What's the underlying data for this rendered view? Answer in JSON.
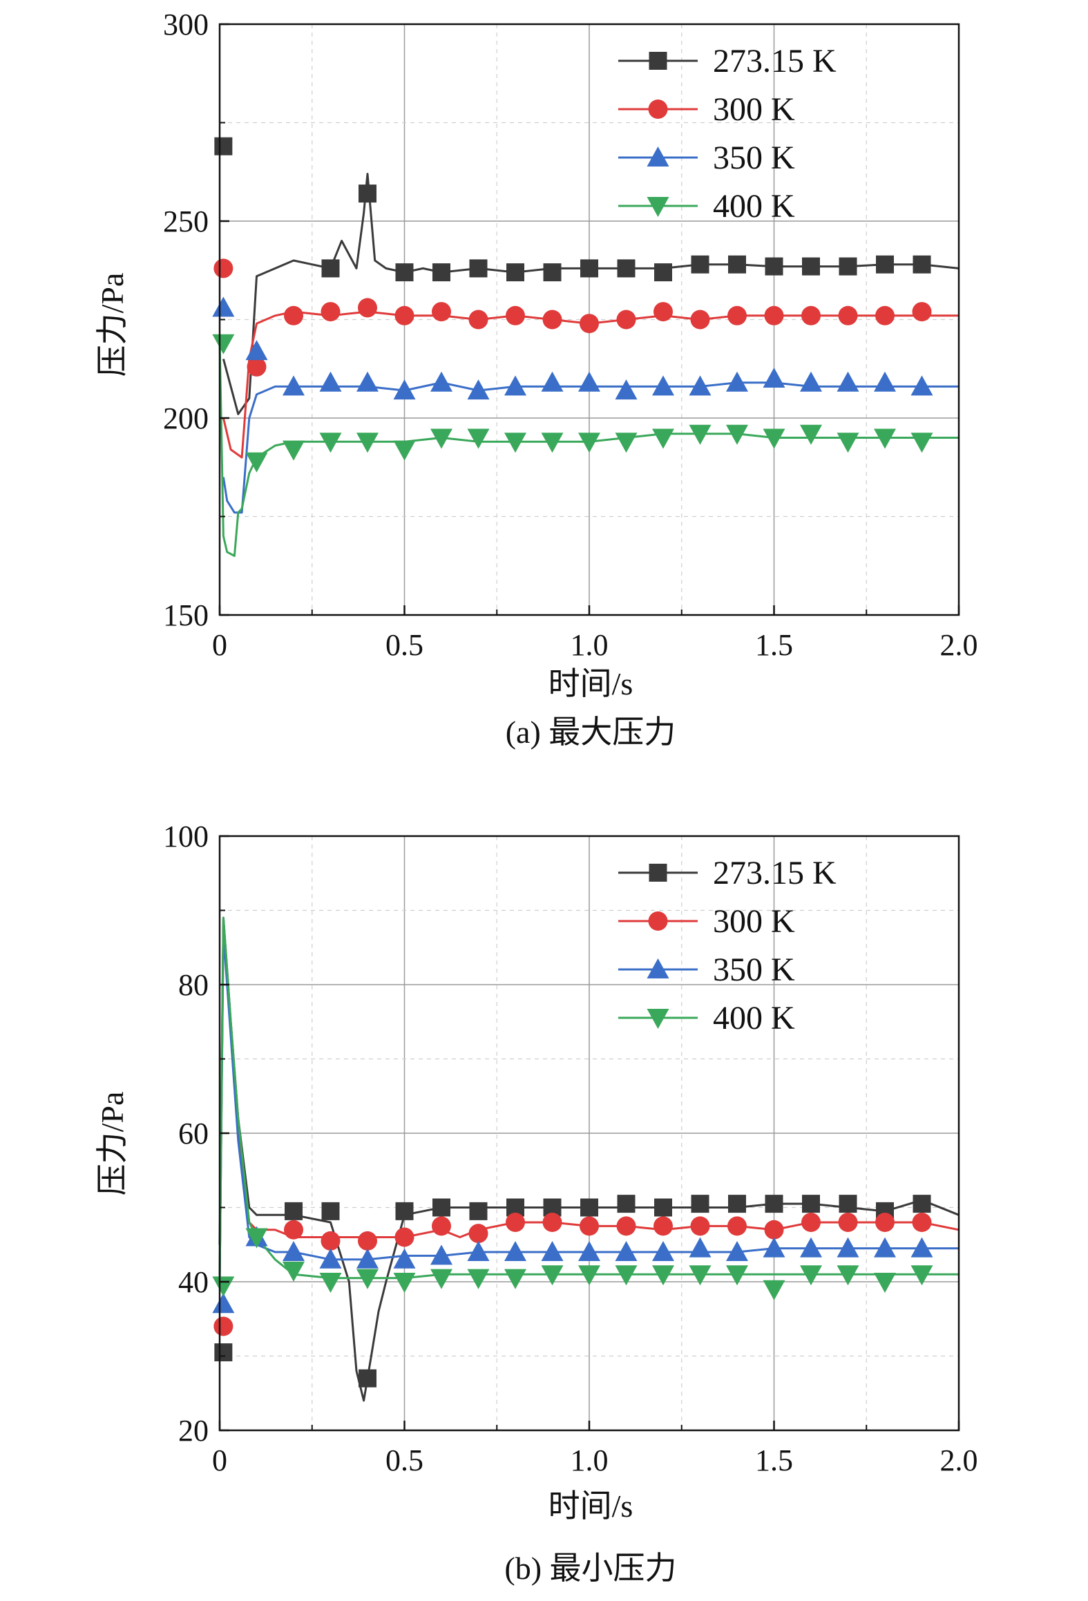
{
  "chart_data": [
    {
      "type": "line",
      "caption": "(a) 最大压力",
      "xlabel": "时间/s",
      "ylabel": "压力/Pa",
      "xlim": [
        0,
        2.0
      ],
      "ylim": [
        150,
        300
      ],
      "xticks": [
        0,
        0.5,
        1.0,
        1.5,
        2.0
      ],
      "xtick_labels": [
        "0",
        "0.5",
        "1.0",
        "1.5",
        "2.0"
      ],
      "yticks": [
        150,
        200,
        250,
        300
      ],
      "ytick_labels": [
        "150",
        "200",
        "250",
        "300"
      ],
      "grid": true,
      "legend_position": "top-right",
      "series": [
        {
          "name": "273.15 K",
          "marker": "square",
          "color": "#3a3a3a",
          "x": [
            0.01,
            0.05,
            0.08,
            0.1,
            0.15,
            0.2,
            0.25,
            0.3,
            0.33,
            0.37,
            0.39,
            0.4,
            0.42,
            0.45,
            0.5,
            0.55,
            0.6,
            0.7,
            0.8,
            0.9,
            1.0,
            1.1,
            1.2,
            1.3,
            1.4,
            1.5,
            1.6,
            1.7,
            1.8,
            1.9,
            2.0
          ],
          "values": [
            215,
            201,
            205,
            236,
            238,
            240,
            239,
            238,
            245,
            238,
            252,
            262,
            240,
            238,
            237,
            238,
            237,
            238,
            237,
            238,
            238,
            238,
            238,
            239,
            239,
            238.5,
            238.5,
            238.5,
            239,
            239,
            238
          ],
          "markers_x": [
            0.01,
            0.3,
            0.4,
            0.5,
            0.6,
            0.7,
            0.8,
            0.9,
            1.0,
            1.1,
            1.2,
            1.3,
            1.4,
            1.5,
            1.6,
            1.7,
            1.8,
            1.9
          ],
          "markers_y": [
            269,
            238,
            257,
            237,
            237,
            238,
            237,
            237,
            238,
            238,
            237,
            239,
            239,
            238.5,
            238.5,
            238.5,
            239,
            239
          ]
        },
        {
          "name": "300 K",
          "marker": "circle",
          "color": "#e03a3a",
          "x": [
            0.01,
            0.03,
            0.06,
            0.08,
            0.1,
            0.15,
            0.2,
            0.3,
            0.4,
            0.5,
            0.6,
            0.7,
            0.8,
            0.9,
            1.0,
            1.1,
            1.2,
            1.3,
            1.4,
            1.5,
            1.6,
            1.7,
            1.8,
            1.9,
            2.0
          ],
          "values": [
            200,
            192,
            190,
            215,
            224,
            226,
            227,
            226,
            227,
            226,
            226,
            225,
            226,
            225,
            224,
            225,
            226,
            225,
            226,
            226,
            226,
            226,
            226,
            226,
            226
          ],
          "markers_x": [
            0.01,
            0.1,
            0.2,
            0.3,
            0.4,
            0.5,
            0.6,
            0.7,
            0.8,
            0.9,
            1.0,
            1.1,
            1.2,
            1.3,
            1.4,
            1.5,
            1.6,
            1.7,
            1.8,
            1.9
          ],
          "markers_y": [
            238,
            213,
            226,
            227,
            228,
            226,
            227,
            225,
            226,
            225,
            224,
            225,
            227,
            225,
            226,
            226,
            226,
            226,
            226,
            227
          ]
        },
        {
          "name": "350 K",
          "marker": "triangle-up",
          "color": "#3a6ec8",
          "x": [
            0.01,
            0.02,
            0.04,
            0.06,
            0.08,
            0.1,
            0.15,
            0.2,
            0.3,
            0.4,
            0.5,
            0.6,
            0.7,
            0.8,
            0.9,
            1.0,
            1.1,
            1.2,
            1.3,
            1.4,
            1.5,
            1.6,
            1.7,
            1.8,
            1.9,
            2.0
          ],
          "values": [
            185,
            179,
            176,
            176,
            200,
            206,
            208,
            208,
            208,
            208,
            207,
            209,
            207,
            208,
            208,
            208,
            208,
            208,
            208,
            209,
            209,
            208,
            208,
            208,
            208,
            208
          ],
          "markers_x": [
            0.01,
            0.1,
            0.2,
            0.3,
            0.4,
            0.5,
            0.6,
            0.7,
            0.8,
            0.9,
            1.0,
            1.1,
            1.2,
            1.3,
            1.4,
            1.5,
            1.6,
            1.7,
            1.8,
            1.9
          ],
          "markers_y": [
            228,
            217,
            208,
            209,
            209,
            207,
            209,
            207,
            208,
            209,
            209,
            207,
            208,
            208,
            209,
            210,
            209,
            209,
            209,
            208
          ]
        },
        {
          "name": "400 K",
          "marker": "triangle-down",
          "color": "#3aa85a",
          "x": [
            0.0,
            0.01,
            0.02,
            0.04,
            0.05,
            0.06,
            0.08,
            0.1,
            0.15,
            0.2,
            0.3,
            0.4,
            0.5,
            0.6,
            0.7,
            0.8,
            0.9,
            1.0,
            1.1,
            1.2,
            1.3,
            1.4,
            1.5,
            1.6,
            1.7,
            1.8,
            1.9,
            2.0
          ],
          "values": [
            220,
            170,
            166,
            165,
            176,
            177,
            186,
            190,
            193,
            194,
            194,
            194,
            194,
            195,
            194,
            194,
            194,
            194,
            195,
            196,
            196,
            196,
            195,
            195,
            195,
            195,
            195,
            195
          ],
          "markers_x": [
            0.01,
            0.1,
            0.2,
            0.3,
            0.4,
            0.5,
            0.6,
            0.7,
            0.8,
            0.9,
            1.0,
            1.1,
            1.2,
            1.3,
            1.4,
            1.5,
            1.6,
            1.7,
            1.8,
            1.9
          ],
          "markers_y": [
            219,
            189,
            192,
            194,
            194,
            192,
            195,
            195,
            194,
            194,
            194,
            194,
            195,
            196,
            196,
            195,
            196,
            194,
            195,
            194
          ]
        }
      ]
    },
    {
      "type": "line",
      "caption": "(b) 最小压力",
      "xlabel": "时间/s",
      "ylabel": "压力/Pa",
      "xlim": [
        0,
        2.0
      ],
      "ylim": [
        20,
        100
      ],
      "xticks": [
        0,
        0.5,
        1.0,
        1.5,
        2.0
      ],
      "xtick_labels": [
        "0",
        "0.5",
        "1.0",
        "1.5",
        "2.0"
      ],
      "yticks": [
        20,
        40,
        60,
        80,
        100
      ],
      "ytick_labels": [
        "20",
        "40",
        "60",
        "80",
        "100"
      ],
      "grid": true,
      "legend_position": "top-right",
      "series": [
        {
          "name": "273.15 K",
          "marker": "square",
          "color": "#3a3a3a",
          "x": [
            0.0,
            0.01,
            0.03,
            0.05,
            0.08,
            0.1,
            0.15,
            0.2,
            0.3,
            0.35,
            0.37,
            0.39,
            0.41,
            0.43,
            0.45,
            0.5,
            0.6,
            0.7,
            0.8,
            0.9,
            1.0,
            1.1,
            1.2,
            1.3,
            1.4,
            1.5,
            1.6,
            1.7,
            1.8,
            1.9,
            2.0
          ],
          "values": [
            45,
            89,
            75,
            62,
            50,
            49,
            49,
            49,
            48,
            40,
            28,
            24,
            30,
            36,
            40,
            49,
            50,
            50,
            50,
            50,
            50,
            50,
            50,
            50,
            50,
            50.5,
            50.5,
            50,
            49.5,
            51,
            49
          ],
          "markers_x": [
            0.01,
            0.2,
            0.3,
            0.4,
            0.5,
            0.6,
            0.7,
            0.8,
            0.9,
            1.0,
            1.1,
            1.2,
            1.3,
            1.4,
            1.5,
            1.6,
            1.7,
            1.8,
            1.9
          ],
          "markers_y": [
            30.5,
            49.5,
            49.5,
            27,
            49.5,
            50,
            49.5,
            50,
            50,
            50,
            50.5,
            50,
            50.5,
            50.5,
            50.5,
            50.5,
            50.5,
            49.5,
            50.5
          ]
        },
        {
          "name": "300 K",
          "marker": "circle",
          "color": "#e03a3a",
          "x": [
            0.0,
            0.01,
            0.03,
            0.05,
            0.08,
            0.1,
            0.15,
            0.2,
            0.3,
            0.4,
            0.5,
            0.6,
            0.65,
            0.7,
            0.8,
            0.9,
            1.0,
            1.1,
            1.2,
            1.3,
            1.4,
            1.5,
            1.6,
            1.7,
            1.8,
            1.9,
            2.0
          ],
          "values": [
            40,
            88,
            74,
            60,
            48,
            47,
            47,
            46,
            46,
            46,
            46,
            47,
            46,
            47,
            48,
            48,
            47.5,
            47.5,
            47,
            47.5,
            47.5,
            47,
            48,
            48,
            48,
            48,
            47
          ],
          "markers_x": [
            0.01,
            0.2,
            0.3,
            0.4,
            0.5,
            0.6,
            0.7,
            0.8,
            0.9,
            1.0,
            1.1,
            1.2,
            1.3,
            1.4,
            1.5,
            1.6,
            1.7,
            1.8,
            1.9
          ],
          "markers_y": [
            34,
            47,
            45.5,
            45.5,
            46,
            47.5,
            46.5,
            48,
            48,
            47.5,
            47.5,
            47.5,
            47.5,
            47.5,
            47,
            48,
            48,
            48,
            48
          ]
        },
        {
          "name": "350 K",
          "marker": "triangle-up",
          "color": "#3a6ec8",
          "x": [
            0.0,
            0.01,
            0.03,
            0.05,
            0.08,
            0.1,
            0.15,
            0.2,
            0.3,
            0.4,
            0.5,
            0.6,
            0.7,
            0.8,
            0.9,
            1.0,
            1.1,
            1.2,
            1.3,
            1.4,
            1.5,
            1.6,
            1.7,
            1.8,
            1.9,
            2.0
          ],
          "values": [
            40,
            87,
            73,
            59,
            46,
            45,
            44,
            44,
            43,
            43,
            43.5,
            43.5,
            44,
            44,
            44,
            44,
            44,
            44,
            44,
            44,
            44.5,
            44.5,
            44.5,
            44.5,
            44.5,
            44.5
          ],
          "markers_x": [
            0.01,
            0.1,
            0.2,
            0.3,
            0.4,
            0.5,
            0.6,
            0.7,
            0.8,
            0.9,
            1.0,
            1.1,
            1.2,
            1.3,
            1.4,
            1.5,
            1.6,
            1.7,
            1.8,
            1.9
          ],
          "markers_y": [
            37,
            46,
            44,
            43,
            43,
            43,
            43.5,
            44,
            44,
            44,
            44,
            44,
            44,
            44.5,
            44,
            44.5,
            44.5,
            44.5,
            44.5,
            44.5
          ]
        },
        {
          "name": "400 K",
          "marker": "triangle-down",
          "color": "#3aa85a",
          "x": [
            0.0,
            0.01,
            0.03,
            0.05,
            0.08,
            0.1,
            0.15,
            0.2,
            0.3,
            0.4,
            0.5,
            0.6,
            0.7,
            0.8,
            0.9,
            1.0,
            1.1,
            1.2,
            1.3,
            1.4,
            1.5,
            1.6,
            1.7,
            1.8,
            1.9,
            2.0
          ],
          "values": [
            40,
            89,
            75,
            62,
            48,
            46,
            43,
            41,
            40.5,
            40.5,
            40.5,
            41,
            41,
            41,
            41,
            41,
            41,
            41,
            41,
            41,
            41,
            41,
            41,
            41,
            41,
            41
          ],
          "markers_x": [
            0.01,
            0.1,
            0.2,
            0.3,
            0.4,
            0.5,
            0.6,
            0.7,
            0.8,
            0.9,
            1.0,
            1.1,
            1.2,
            1.3,
            1.4,
            1.5,
            1.6,
            1.7,
            1.8,
            1.9
          ],
          "markers_y": [
            39.5,
            46,
            41.5,
            40,
            40.5,
            40,
            40.5,
            40.5,
            40.5,
            41,
            41,
            41,
            41,
            41,
            41,
            39,
            41,
            41,
            40,
            41
          ]
        }
      ]
    }
  ]
}
